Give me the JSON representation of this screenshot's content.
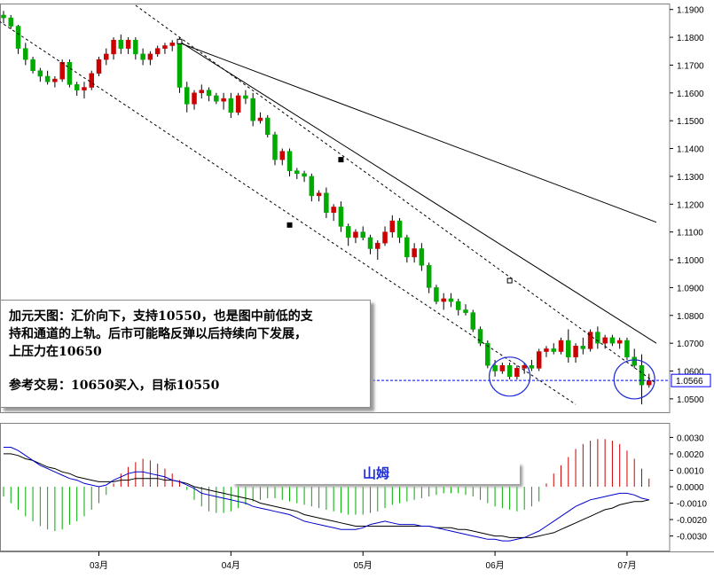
{
  "chart_data": [
    {
      "type": "candlestick",
      "instrument_note": "EUR/USD daily",
      "y_ticks": [
        "1.1900",
        "1.1800",
        "1.1700",
        "1.1600",
        "1.1500",
        "1.1400",
        "1.1300",
        "1.1200",
        "1.1100",
        "1.1000",
        "1.0900",
        "1.0800",
        "1.0700",
        "1.0600",
        "1.0500"
      ],
      "ylim": [
        1.0455,
        1.1915
      ],
      "current_price_label": "1.0566",
      "current_price": 1.0566,
      "x_tick_labels": [
        "03月",
        "04月",
        "05月",
        "06月",
        "07月"
      ],
      "colors": {
        "up": "#cc0000",
        "down": "#00aa00",
        "wick": "#000000",
        "price_line": "#0000ff"
      },
      "candles_ohlc": [
        [
          1.188,
          1.1895,
          1.185,
          1.187
        ],
        [
          1.187,
          1.188,
          1.183,
          1.184
        ],
        [
          1.184,
          1.1845,
          1.174,
          1.176
        ],
        [
          1.176,
          1.178,
          1.17,
          1.172
        ],
        [
          1.172,
          1.173,
          1.167,
          1.168
        ],
        [
          1.168,
          1.169,
          1.164,
          1.166
        ],
        [
          1.166,
          1.168,
          1.163,
          1.164
        ],
        [
          1.164,
          1.166,
          1.162,
          1.165
        ],
        [
          1.165,
          1.172,
          1.164,
          1.171
        ],
        [
          1.171,
          1.172,
          1.162,
          1.163
        ],
        [
          1.163,
          1.164,
          1.159,
          1.161
        ],
        [
          1.161,
          1.164,
          1.158,
          1.162
        ],
        [
          1.162,
          1.168,
          1.161,
          1.167
        ],
        [
          1.167,
          1.173,
          1.166,
          1.172
        ],
        [
          1.172,
          1.176,
          1.17,
          1.174
        ],
        [
          1.174,
          1.18,
          1.172,
          1.179
        ],
        [
          1.179,
          1.181,
          1.174,
          1.176
        ],
        [
          1.176,
          1.18,
          1.174,
          1.179
        ],
        [
          1.179,
          1.18,
          1.172,
          1.174
        ],
        [
          1.174,
          1.176,
          1.17,
          1.172
        ],
        [
          1.172,
          1.175,
          1.17,
          1.174
        ],
        [
          1.174,
          1.177,
          1.173,
          1.176
        ],
        [
          1.176,
          1.178,
          1.174,
          1.177
        ],
        [
          1.177,
          1.179,
          1.175,
          1.178
        ],
        [
          1.178,
          1.18,
          1.16,
          1.162
        ],
        [
          1.162,
          1.164,
          1.153,
          1.156
        ],
        [
          1.156,
          1.161,
          1.154,
          1.16
        ],
        [
          1.16,
          1.163,
          1.158,
          1.161
        ],
        [
          1.161,
          1.162,
          1.157,
          1.159
        ],
        [
          1.159,
          1.16,
          1.156,
          1.157
        ],
        [
          1.157,
          1.16,
          1.154,
          1.158
        ],
        [
          1.158,
          1.16,
          1.151,
          1.153
        ],
        [
          1.153,
          1.16,
          1.152,
          1.159
        ],
        [
          1.159,
          1.161,
          1.156,
          1.158
        ],
        [
          1.158,
          1.16,
          1.148,
          1.15
        ],
        [
          1.15,
          1.153,
          1.149,
          1.151
        ],
        [
          1.151,
          1.152,
          1.144,
          1.145
        ],
        [
          1.145,
          1.146,
          1.134,
          1.136
        ],
        [
          1.136,
          1.14,
          1.134,
          1.139
        ],
        [
          1.139,
          1.14,
          1.13,
          1.132
        ],
        [
          1.132,
          1.133,
          1.129,
          1.131
        ],
        [
          1.131,
          1.132,
          1.128,
          1.13
        ],
        [
          1.13,
          1.131,
          1.121,
          1.123
        ],
        [
          1.123,
          1.125,
          1.121,
          1.124
        ],
        [
          1.124,
          1.126,
          1.115,
          1.117
        ],
        [
          1.117,
          1.12,
          1.114,
          1.119
        ],
        [
          1.119,
          1.121,
          1.11,
          1.112
        ],
        [
          1.112,
          1.113,
          1.105,
          1.108
        ],
        [
          1.108,
          1.111,
          1.106,
          1.11
        ],
        [
          1.11,
          1.112,
          1.107,
          1.108
        ],
        [
          1.108,
          1.109,
          1.102,
          1.104
        ],
        [
          1.104,
          1.107,
          1.1,
          1.106
        ],
        [
          1.106,
          1.112,
          1.105,
          1.11
        ],
        [
          1.11,
          1.116,
          1.108,
          1.114
        ],
        [
          1.114,
          1.115,
          1.106,
          1.108
        ],
        [
          1.108,
          1.109,
          1.099,
          1.101
        ],
        [
          1.101,
          1.106,
          1.099,
          1.104
        ],
        [
          1.104,
          1.106,
          1.096,
          1.098
        ],
        [
          1.098,
          1.099,
          1.088,
          1.09
        ],
        [
          1.09,
          1.091,
          1.084,
          1.085
        ],
        [
          1.085,
          1.088,
          1.082,
          1.086
        ],
        [
          1.086,
          1.088,
          1.083,
          1.085
        ],
        [
          1.085,
          1.086,
          1.08,
          1.082
        ],
        [
          1.082,
          1.084,
          1.08,
          1.081
        ],
        [
          1.081,
          1.082,
          1.074,
          1.075
        ],
        [
          1.075,
          1.076,
          1.069,
          1.07
        ],
        [
          1.07,
          1.071,
          1.061,
          1.062
        ],
        [
          1.062,
          1.064,
          1.058,
          1.06
        ],
        [
          1.06,
          1.063,
          1.059,
          1.062
        ],
        [
          1.062,
          1.063,
          1.057,
          1.058
        ],
        [
          1.058,
          1.062,
          1.057,
          1.061
        ],
        [
          1.061,
          1.063,
          1.059,
          1.062
        ],
        [
          1.062,
          1.064,
          1.06,
          1.061
        ],
        [
          1.061,
          1.068,
          1.06,
          1.067
        ],
        [
          1.067,
          1.069,
          1.065,
          1.068
        ],
        [
          1.068,
          1.07,
          1.066,
          1.067
        ],
        [
          1.067,
          1.072,
          1.066,
          1.071
        ],
        [
          1.071,
          1.075,
          1.063,
          1.065
        ],
        [
          1.065,
          1.07,
          1.063,
          1.069
        ],
        [
          1.069,
          1.072,
          1.066,
          1.068
        ],
        [
          1.068,
          1.075,
          1.067,
          1.074
        ],
        [
          1.074,
          1.076,
          1.068,
          1.07
        ],
        [
          1.07,
          1.073,
          1.068,
          1.072
        ],
        [
          1.072,
          1.073,
          1.069,
          1.07
        ],
        [
          1.07,
          1.072,
          1.068,
          1.071
        ],
        [
          1.071,
          1.072,
          1.064,
          1.065
        ],
        [
          1.065,
          1.068,
          1.061,
          1.062
        ],
        [
          1.062,
          1.066,
          1.048,
          1.055
        ],
        [
          1.055,
          1.059,
          1.054,
          1.0566
        ]
      ],
      "channel_lines": [
        {
          "style": "solid",
          "points": [
            [
              24,
              1.178
            ],
            [
              89,
              1.1135
            ]
          ]
        },
        {
          "style": "solid",
          "points": [
            [
              24,
              1.1785
            ],
            [
              89,
              1.07
            ]
          ]
        },
        {
          "style": "dashed",
          "points": [
            [
              -3,
              1.19
            ],
            [
              78,
              1.048
            ]
          ]
        },
        {
          "style": "dashed",
          "points": [
            [
              18,
              1.1915
            ],
            [
              89,
              1.0555
            ]
          ]
        }
      ],
      "annotations": {
        "support_circles": [
          {
            "center_index": 69,
            "price": 1.058
          },
          {
            "center_index": 86,
            "price": 1.057
          }
        ]
      }
    },
    {
      "type": "macd",
      "y_ticks": [
        "0.0030",
        "0.0020",
        "0.0010",
        "0.0000",
        "-0.0010",
        "-0.0020",
        "-0.0030"
      ],
      "ylim": [
        -0.0034,
        0.0034
      ],
      "histogram": [
        -0.0006,
        -0.001,
        -0.0014,
        -0.0018,
        -0.0021,
        -0.0024,
        -0.0026,
        -0.0027,
        -0.0026,
        -0.0023,
        -0.0021,
        -0.0018,
        -0.0014,
        -0.001,
        -0.0005,
        0.0002,
        0.0008,
        0.0012,
        0.0015,
        0.0017,
        0.0016,
        0.0014,
        0.0011,
        0.0008,
        0.0004,
        -0.0002,
        -0.0008,
        -0.0012,
        -0.0015,
        -0.0016,
        -0.0016,
        -0.0015,
        -0.0013,
        -0.0011,
        -0.0009,
        -0.0008,
        -0.0007,
        -0.0007,
        -0.0008,
        -0.0009,
        -0.001,
        -0.0011,
        -0.0012,
        -0.0013,
        -0.0014,
        -0.0015,
        -0.0016,
        -0.0017,
        -0.0017,
        -0.0017,
        -0.0016,
        -0.0015,
        -0.0013,
        -0.0011,
        -0.001,
        -0.0009,
        -0.0008,
        -0.0007,
        -0.0006,
        -0.0005,
        -0.0004,
        -0.0004,
        -0.0004,
        -0.0005,
        -0.0006,
        -0.0008,
        -0.001,
        -0.0012,
        -0.0013,
        -0.0014,
        -0.0015,
        -0.0014,
        -0.0012,
        -0.0009,
        0.0002,
        0.0008,
        0.0013,
        0.0018,
        0.0023,
        0.0026,
        0.0028,
        0.0029,
        0.0029,
        0.0028,
        0.0026,
        0.0022,
        0.0017,
        0.0011,
        0.0005
      ],
      "macd_line": [
        0.0024,
        0.0024,
        0.0022,
        0.0019,
        0.0016,
        0.0013,
        0.0011,
        0.0009,
        0.0007,
        0.0005,
        0.0004,
        0.0002,
        0.0001,
        0.0,
        0.0001,
        0.0004,
        0.0006,
        0.0008,
        0.0009,
        0.0009,
        0.0008,
        0.0007,
        0.0006,
        0.0004,
        0.0003,
        0.0001,
        -0.0001,
        -0.0004,
        -0.0005,
        -0.0006,
        -0.0007,
        -0.0008,
        -0.0009,
        -0.001,
        -0.0012,
        -0.0013,
        -0.0014,
        -0.0015,
        -0.0016,
        -0.0017,
        -0.0019,
        -0.0021,
        -0.0022,
        -0.0023,
        -0.0024,
        -0.0025,
        -0.0026,
        -0.0026,
        -0.0026,
        -0.0025,
        -0.0023,
        -0.0022,
        -0.0021,
        -0.0022,
        -0.0023,
        -0.0023,
        -0.0023,
        -0.0024,
        -0.0024,
        -0.0025,
        -0.0026,
        -0.0027,
        -0.0028,
        -0.0029,
        -0.003,
        -0.0031,
        -0.0032,
        -0.0032,
        -0.0033,
        -0.0033,
        -0.0032,
        -0.0031,
        -0.0029,
        -0.0027,
        -0.0024,
        -0.0021,
        -0.0018,
        -0.0015,
        -0.0012,
        -0.001,
        -0.0008,
        -0.0007,
        -0.0006,
        -0.0005,
        -0.0004,
        -0.0004,
        -0.0005,
        -0.0007,
        -0.0008
      ],
      "signal_line": [
        0.002,
        0.002,
        0.0019,
        0.0017,
        0.0016,
        0.0014,
        0.0012,
        0.0011,
        0.0009,
        0.0008,
        0.0006,
        0.0005,
        0.0004,
        0.0003,
        0.0003,
        0.0003,
        0.0004,
        0.0004,
        0.0005,
        0.0005,
        0.0005,
        0.0005,
        0.0004,
        0.0004,
        0.0003,
        0.0002,
        0.0,
        -0.0001,
        -0.0002,
        -0.0003,
        -0.0004,
        -0.0005,
        -0.0006,
        -0.0007,
        -0.0008,
        -0.001,
        -0.0011,
        -0.0012,
        -0.0013,
        -0.0014,
        -0.0015,
        -0.0017,
        -0.0018,
        -0.0019,
        -0.002,
        -0.0021,
        -0.0022,
        -0.0023,
        -0.0024,
        -0.0024,
        -0.0024,
        -0.0024,
        -0.0024,
        -0.0024,
        -0.0024,
        -0.0024,
        -0.0024,
        -0.0024,
        -0.0024,
        -0.0025,
        -0.0025,
        -0.0025,
        -0.0026,
        -0.0026,
        -0.0027,
        -0.0028,
        -0.0029,
        -0.003,
        -0.003,
        -0.0031,
        -0.0031,
        -0.0031,
        -0.0031,
        -0.003,
        -0.0029,
        -0.0028,
        -0.0026,
        -0.0024,
        -0.0022,
        -0.002,
        -0.0018,
        -0.0016,
        -0.0014,
        -0.0013,
        -0.0011,
        -0.001,
        -0.0009,
        -0.0009,
        -0.0008
      ],
      "colors": {
        "hist_pos": "#cc0000",
        "hist_neg": "#00aa00",
        "macd": "#0000cc",
        "signal": "#000000"
      }
    }
  ],
  "note": {
    "line1": "加元天图：汇价向下，支持10550，也是图中前低的支",
    "line2": "持和通道的上轨。后市可能略反弹以后持续向下发展，",
    "line3": "上压力在10650",
    "line4": "参考交易：10650买入，目标10550"
  },
  "tag": {
    "label": "山姆"
  }
}
